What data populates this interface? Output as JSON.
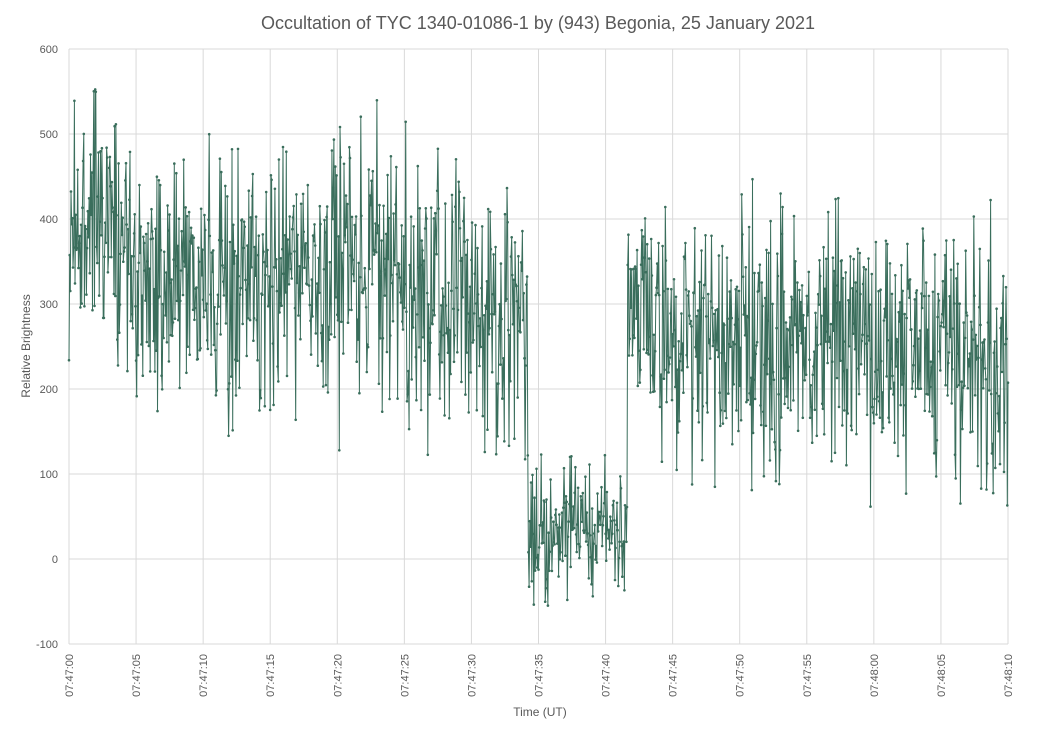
{
  "chart_data": {
    "type": "line",
    "title": "Occultation of TYC 1340-01086-1 by (943) Begonia, 25 January 2021",
    "xlabel": "Time (UT)",
    "ylabel": "Relative Brightness",
    "ylim": [
      -100,
      600
    ],
    "y_ticks": [
      "-100",
      "0",
      "100",
      "200",
      "300",
      "400",
      "500",
      "600"
    ],
    "x_ticks": [
      "07:47:00",
      "07:47:05",
      "07:47:10",
      "07:47:15",
      "07:47:20",
      "07:47:25",
      "07:47:30",
      "07:47:35",
      "07:47:40",
      "07:47:45",
      "07:47:50",
      "07:47:55",
      "07:48:00",
      "07:48:05",
      "07:48:10"
    ],
    "xlim": [
      "07:47:00",
      "07:48:10"
    ],
    "grid": true,
    "legend": "none",
    "series_color": "#3a6e5c",
    "series": [
      {
        "sample_interval_s": 0.05,
        "start": "07:47:00",
        "segments": [
          {
            "from": "07:47:00.0",
            "mean": 375
          },
          {
            "from": "07:47:03.0",
            "mean": 390
          },
          {
            "from": "07:47:05.0",
            "mean": 320
          },
          {
            "from": "07:47:08.0",
            "mean": 315
          },
          {
            "from": "07:47:11.0",
            "mean": 325
          },
          {
            "from": "07:47:14.0",
            "mean": 300
          },
          {
            "from": "07:47:17.0",
            "mean": 340
          },
          {
            "from": "07:47:20.0",
            "mean": 355
          },
          {
            "from": "07:47:23.0",
            "mean": 330
          },
          {
            "from": "07:47:26.0",
            "mean": 320
          },
          {
            "from": "07:47:29.0",
            "mean": 300
          },
          {
            "from": "07:47:32.0",
            "mean": 270
          },
          {
            "from": "07:47:34.2",
            "mean": 25
          },
          {
            "from": "07:47:37.0",
            "mean": 30
          },
          {
            "from": "07:47:40.0",
            "mean": 35
          },
          {
            "from": "07:47:41.6",
            "mean": 290
          },
          {
            "from": "07:47:45.0",
            "mean": 255
          },
          {
            "from": "07:47:50.0",
            "mean": 250
          },
          {
            "from": "07:47:55.0",
            "mean": 245
          },
          {
            "from": "07:48:00.0",
            "mean": 240
          },
          {
            "from": "07:48:05.0",
            "mean": 255
          },
          {
            "from": "07:48:08.0",
            "mean": 230
          },
          {
            "from": "07:48:10.0",
            "mean": 220
          }
        ],
        "noise_amplitude": {
          "pre": 70,
          "occultation": 35,
          "post": 65
        }
      }
    ]
  }
}
